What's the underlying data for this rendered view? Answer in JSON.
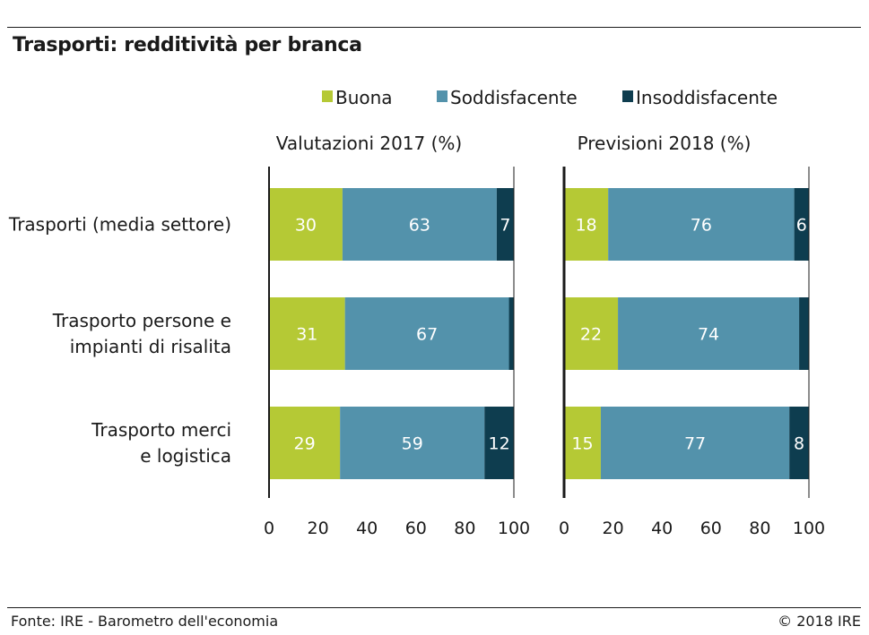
{
  "title": "Trasporti: redditività per branca",
  "footer": {
    "source": "Fonte: IRE - Barometro dell'economia",
    "copyright": "© 2018 IRE"
  },
  "colors": {
    "buona": "#b5c935",
    "soddisfacente": "#5392ab",
    "insoddisfacente": "#0e3d4f",
    "axis": "#1a1a1a",
    "bar_label_light": "#ffffff"
  },
  "chart_data": {
    "type": "bar",
    "orientation": "horizontal",
    "stacked": true,
    "title": "Trasporti: redditività per branca",
    "legend": {
      "position": "top",
      "entries": [
        "Buona",
        "Soddisfacente",
        "Insoddisfacente"
      ]
    },
    "categories": [
      [
        "Trasporti (media settore)"
      ],
      [
        "Trasporto persone e",
        "impianti di risalita"
      ],
      [
        "Trasporto merci",
        "e logistica"
      ]
    ],
    "xlim": [
      0,
      100
    ],
    "xticks": [
      0,
      20,
      40,
      60,
      80,
      100
    ],
    "panels": [
      {
        "title": "Valutazioni 2017 (%)",
        "series": [
          {
            "name": "Buona",
            "values": [
              30,
              31,
              29
            ],
            "labels": [
              "30",
              "31",
              "29"
            ]
          },
          {
            "name": "Soddisfacente",
            "values": [
              63,
              67,
              59
            ],
            "labels": [
              "63",
              "67",
              "59"
            ]
          },
          {
            "name": "Insoddisfacente",
            "values": [
              7,
              2,
              12
            ],
            "labels": [
              "7",
              "",
              "12"
            ]
          }
        ]
      },
      {
        "title": "Previsioni 2018 (%)",
        "series": [
          {
            "name": "Buona",
            "values": [
              18,
              22,
              15
            ],
            "labels": [
              "18",
              "22",
              "15"
            ]
          },
          {
            "name": "Soddisfacente",
            "values": [
              76,
              74,
              77
            ],
            "labels": [
              "76",
              "74",
              "77"
            ]
          },
          {
            "name": "Insoddisfacente",
            "values": [
              6,
              4,
              8
            ],
            "labels": [
              "6",
              "",
              "8"
            ]
          }
        ]
      }
    ]
  }
}
